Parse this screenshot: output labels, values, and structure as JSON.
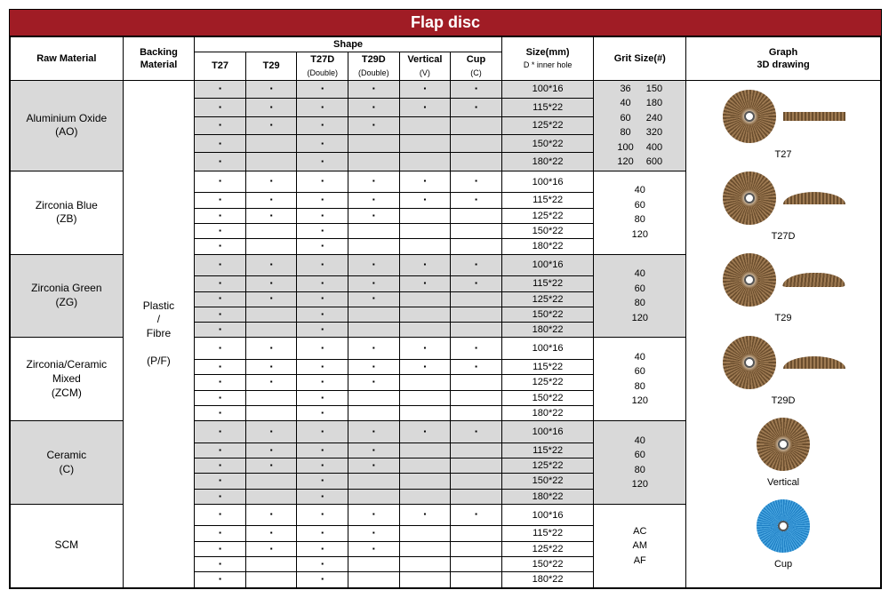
{
  "title": "Flap disc",
  "headers": {
    "rawMaterial": "Raw Material",
    "backing": "Backing\nMaterial",
    "shape": "Shape",
    "shapes": [
      {
        "l": "T27",
        "s": ""
      },
      {
        "l": "T29",
        "s": ""
      },
      {
        "l": "T27D",
        "s": "(Double)"
      },
      {
        "l": "T29D",
        "s": "(Double)"
      },
      {
        "l": "Vertical",
        "s": "(V)"
      },
      {
        "l": "Cup",
        "s": "(C)"
      }
    ],
    "size": "Size(mm)",
    "sizeSub": "D * inner hole",
    "grit": "Grit Size(#)",
    "graph": "Graph\n3D drawing"
  },
  "backing": "Plastic\n/\nFibre\n\n(P/F)",
  "sizes": [
    "100*16",
    "115*22",
    "125*22",
    "150*22",
    "180*22"
  ],
  "groups": [
    {
      "name": "Aluminium Oxide\n(AO)",
      "shade": 1,
      "grit": {
        "multi": true,
        "c1": [
          "36",
          "40",
          "60",
          "80",
          "100",
          "120"
        ],
        "c2": [
          "150",
          "180",
          "240",
          "320",
          "400",
          "600"
        ]
      },
      "rows": [
        [
          1,
          1,
          1,
          1,
          1,
          1
        ],
        [
          1,
          1,
          1,
          1,
          1,
          1
        ],
        [
          1,
          1,
          1,
          1,
          0,
          0
        ],
        [
          1,
          0,
          1,
          0,
          0,
          0
        ],
        [
          1,
          0,
          1,
          0,
          0,
          0
        ]
      ]
    },
    {
      "name": "Zirconia Blue\n(ZB)",
      "shade": 0,
      "grit": {
        "lines": [
          "40",
          "60",
          "80",
          "120"
        ]
      },
      "rows": [
        [
          1,
          1,
          1,
          1,
          1,
          1
        ],
        [
          1,
          1,
          1,
          1,
          1,
          1
        ],
        [
          1,
          1,
          1,
          1,
          0,
          0
        ],
        [
          1,
          0,
          1,
          0,
          0,
          0
        ],
        [
          1,
          0,
          1,
          0,
          0,
          0
        ]
      ]
    },
    {
      "name": "Zirconia Green\n(ZG)",
      "shade": 1,
      "grit": {
        "lines": [
          "40",
          "60",
          "80",
          "120"
        ]
      },
      "rows": [
        [
          1,
          1,
          1,
          1,
          1,
          1
        ],
        [
          1,
          1,
          1,
          1,
          1,
          1
        ],
        [
          1,
          1,
          1,
          1,
          0,
          0
        ],
        [
          1,
          0,
          1,
          0,
          0,
          0
        ],
        [
          1,
          0,
          1,
          0,
          0,
          0
        ]
      ]
    },
    {
      "name": "Zirconia/Ceramic\nMixed\n(ZCM)",
      "shade": 0,
      "grit": {
        "lines": [
          "40",
          "60",
          "80",
          "120"
        ]
      },
      "rows": [
        [
          1,
          1,
          1,
          1,
          1,
          1
        ],
        [
          1,
          1,
          1,
          1,
          1,
          1
        ],
        [
          1,
          1,
          1,
          1,
          0,
          0
        ],
        [
          1,
          0,
          1,
          0,
          0,
          0
        ],
        [
          1,
          0,
          1,
          0,
          0,
          0
        ]
      ]
    },
    {
      "name": "Ceramic\n(C)",
      "shade": 1,
      "grit": {
        "lines": [
          "40",
          "60",
          "80",
          "120"
        ]
      },
      "rows": [
        [
          1,
          1,
          1,
          1,
          1,
          1
        ],
        [
          1,
          1,
          1,
          1,
          0,
          0
        ],
        [
          1,
          1,
          1,
          1,
          0,
          0
        ],
        [
          1,
          0,
          1,
          0,
          0,
          0
        ],
        [
          1,
          0,
          1,
          0,
          0,
          0
        ]
      ]
    },
    {
      "name": "SCM",
      "shade": 0,
      "grit": {
        "lines": [
          "AC",
          "AM",
          "AF"
        ]
      },
      "rows": [
        [
          1,
          1,
          1,
          1,
          1,
          1
        ],
        [
          1,
          1,
          1,
          1,
          0,
          0
        ],
        [
          1,
          1,
          1,
          1,
          0,
          0
        ],
        [
          1,
          0,
          1,
          0,
          0,
          0
        ],
        [
          1,
          0,
          1,
          0,
          0,
          0
        ]
      ]
    }
  ],
  "graphItems": [
    "T27",
    "T27D",
    "T29",
    "T29D",
    "Vertical",
    "Cup"
  ],
  "colors": {
    "titleBg": "#a01c25",
    "shade": "#d9d9d9",
    "border": "#000000",
    "text": "#000000",
    "discA": "#6b4e2e",
    "discB": "#9e7a52",
    "blueA": "#1e7fc4",
    "blueB": "#4aa6e0"
  },
  "colWidths": {
    "rawMaterial": 110,
    "backing": 70,
    "shape": 50,
    "size": 90,
    "grit": 90,
    "graph": 190
  }
}
